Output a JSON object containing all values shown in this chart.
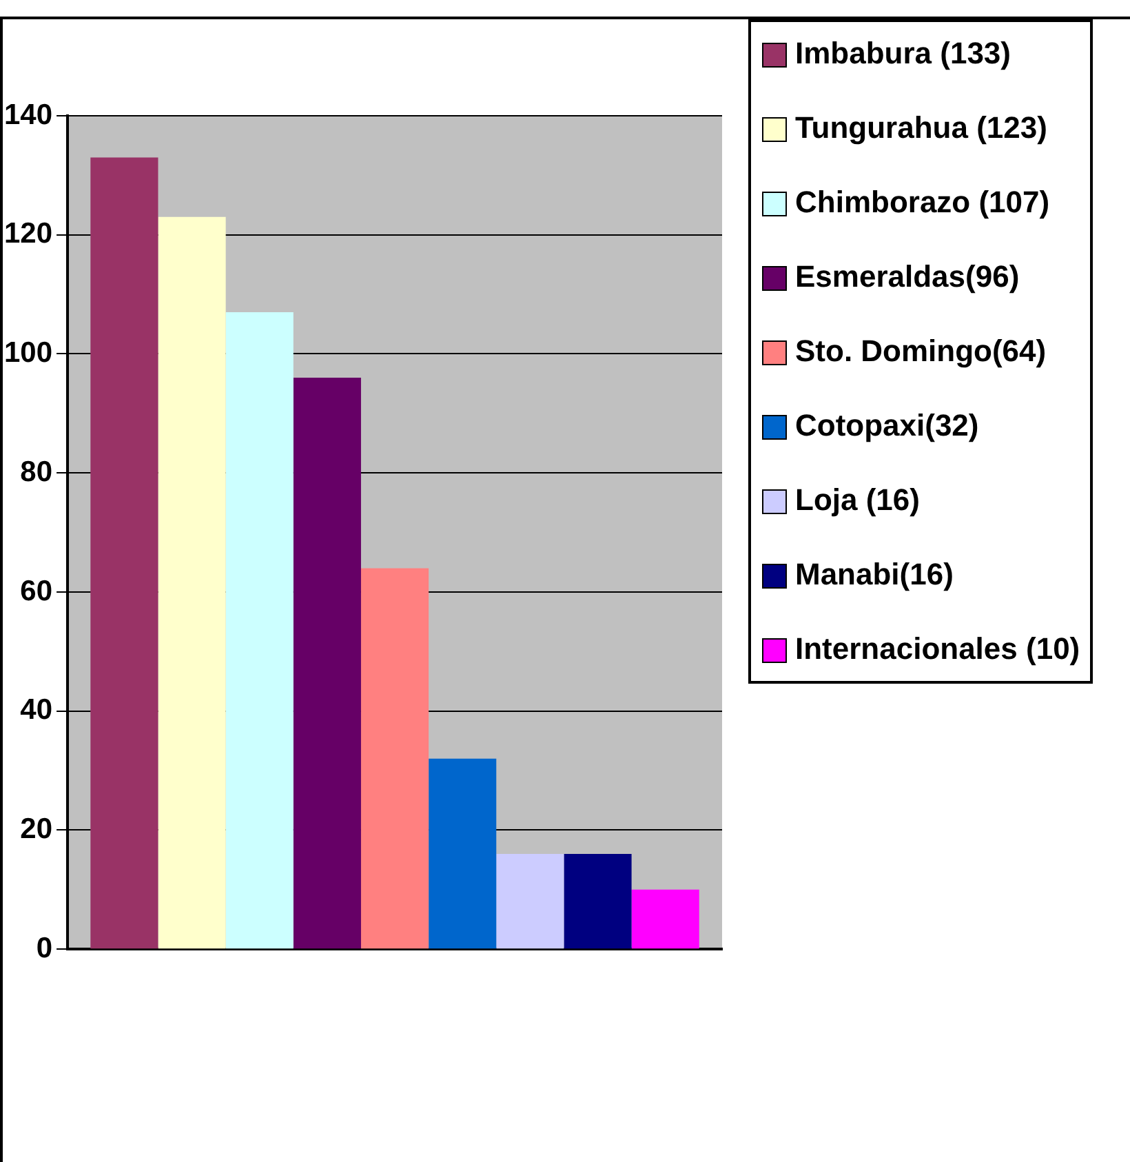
{
  "chart_data": {
    "type": "bar",
    "categories": [
      null
    ],
    "series": [
      {
        "name": "Imbabura (133)",
        "color": "#993366",
        "values": [
          133
        ]
      },
      {
        "name": "Tungurahua (123)",
        "color": "#ffffcc",
        "values": [
          123
        ]
      },
      {
        "name": "Chimborazo (107)",
        "color": "#ccffff",
        "values": [
          107
        ]
      },
      {
        "name": "Esmeraldas(96)",
        "color": "#660066",
        "values": [
          96
        ]
      },
      {
        "name": "Sto. Domingo(64)",
        "color": "#ff8080",
        "values": [
          64
        ]
      },
      {
        "name": "Cotopaxi(32)",
        "color": "#0066cc",
        "values": [
          32
        ]
      },
      {
        "name": "Loja (16)",
        "color": "#ccccff",
        "values": [
          16
        ]
      },
      {
        "name": "Manabi(16)",
        "color": "#000080",
        "values": [
          16
        ]
      },
      {
        "name": "Internacionales (10)",
        "color": "#ff00ff",
        "values": [
          10
        ]
      }
    ],
    "ylim": [
      0,
      140
    ],
    "yticks": [
      0,
      20,
      40,
      60,
      80,
      100,
      120,
      140
    ],
    "grid": "y",
    "legend": "right"
  }
}
